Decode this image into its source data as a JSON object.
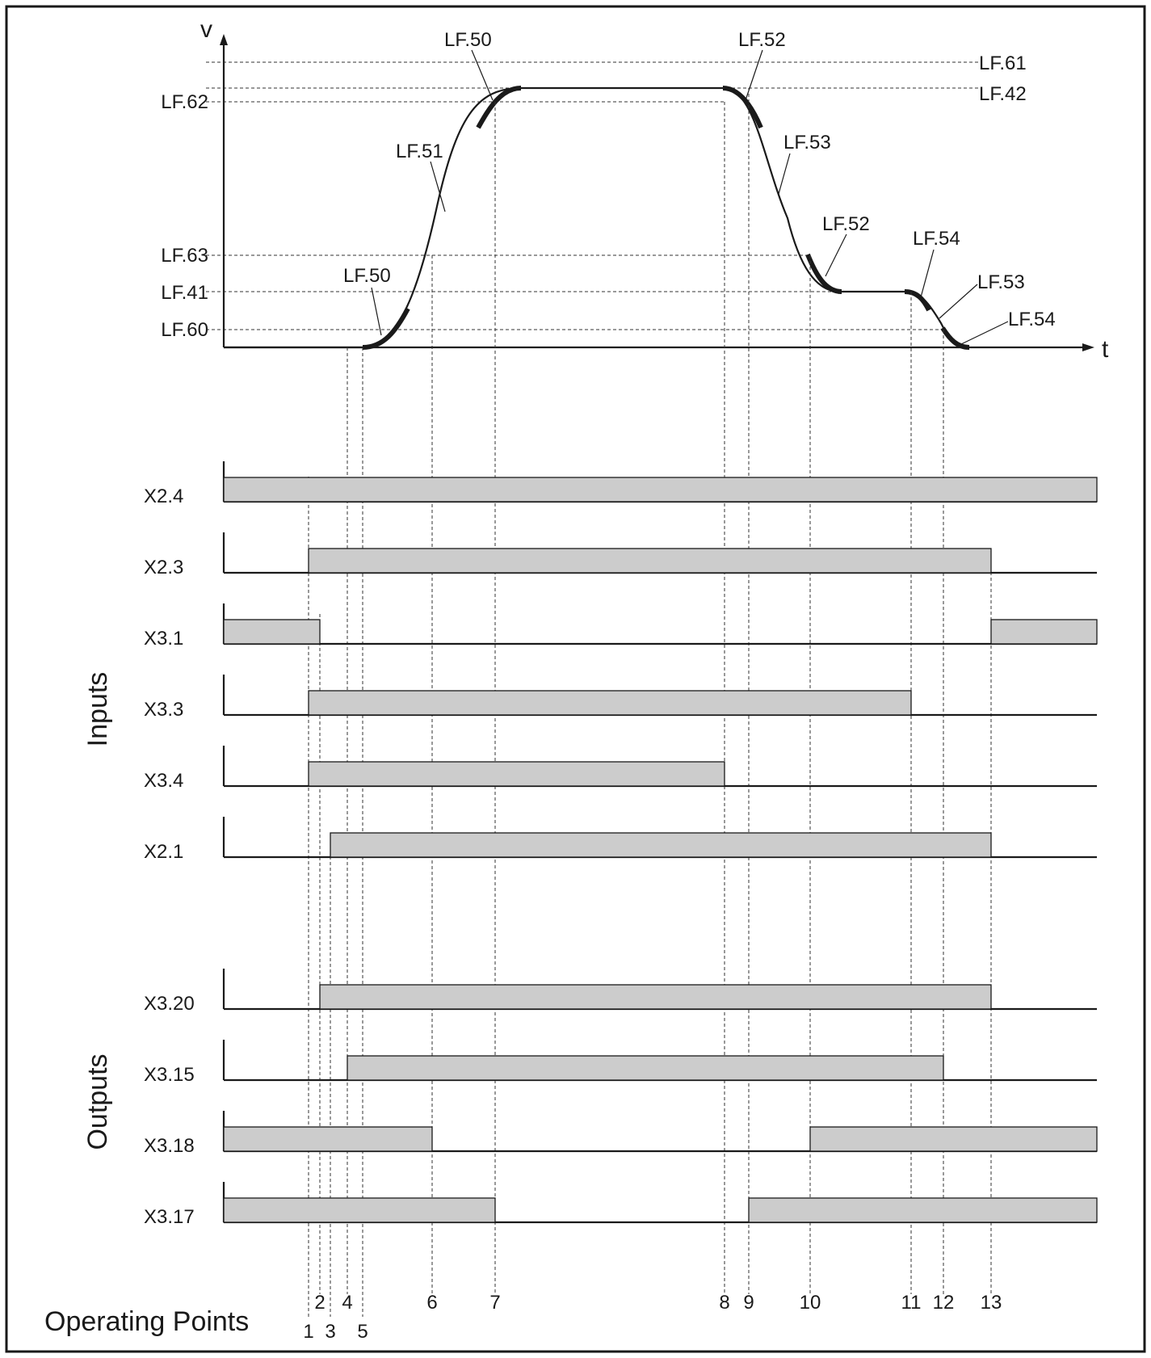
{
  "speed_chart": {
    "y_axis_label": "v",
    "x_axis_label": "t",
    "levels": [
      {
        "key": "LF.61",
        "value": 0.94,
        "side": "right"
      },
      {
        "key": "LF.42",
        "value": 0.86,
        "side": "right"
      },
      {
        "key": "LF.62",
        "value": 0.82,
        "side": "left"
      },
      {
        "key": "LF.63",
        "value": 0.32,
        "side": "left"
      },
      {
        "key": "LF.41",
        "value": 0.19,
        "side": "left"
      },
      {
        "key": "LF.60",
        "value": 0.06,
        "side": "left"
      }
    ],
    "profile_points": [
      [
        0,
        0
      ],
      [
        0.31,
        0
      ],
      [
        0.665,
        0.86
      ],
      [
        1.17,
        0.86
      ],
      [
        1.525,
        0.19
      ],
      [
        1.71,
        0.19
      ],
      [
        1.825,
        0
      ]
    ],
    "segment_labels": [
      "LF.50",
      "LF.51",
      "LF.50",
      "LF.52",
      "LF.53",
      "LF.52",
      "LF.54",
      "LF.53",
      "LF.54"
    ]
  },
  "signals": {
    "timeline_end": 13.8,
    "inputs_label": "Inputs",
    "outputs_label": "Outputs",
    "inputs": [
      {
        "name": "X2.4",
        "high": [
          [
            0,
            13.8
          ]
        ]
      },
      {
        "name": "X2.3",
        "high": [
          [
            1,
            13
          ]
        ]
      },
      {
        "name": "X3.1",
        "high": [
          [
            0,
            2
          ],
          [
            13,
            13.8
          ]
        ]
      },
      {
        "name": "X3.3",
        "high": [
          [
            1,
            11
          ]
        ]
      },
      {
        "name": "X3.4",
        "high": [
          [
            1,
            8
          ]
        ]
      },
      {
        "name": "X2.1",
        "high": [
          [
            3,
            13
          ]
        ]
      }
    ],
    "outputs": [
      {
        "name": "X3.20",
        "high": [
          [
            2,
            13
          ]
        ]
      },
      {
        "name": "X3.15",
        "high": [
          [
            4,
            12
          ]
        ]
      },
      {
        "name": "X3.18",
        "high": [
          [
            0,
            6
          ],
          [
            10,
            13.8
          ]
        ]
      },
      {
        "name": "X3.17",
        "high": [
          [
            0,
            7
          ],
          [
            9,
            13.8
          ]
        ]
      }
    ]
  },
  "operating_points": {
    "title": "Operating Points",
    "top_row": [
      "2",
      "4",
      "6",
      "7",
      "8",
      "9",
      "10",
      "11",
      "12",
      "13"
    ],
    "bottom_row": [
      "1",
      "3",
      "5"
    ]
  },
  "colors": {
    "pulse_fill": "#cccccc",
    "ink": "#1a1a1a"
  }
}
